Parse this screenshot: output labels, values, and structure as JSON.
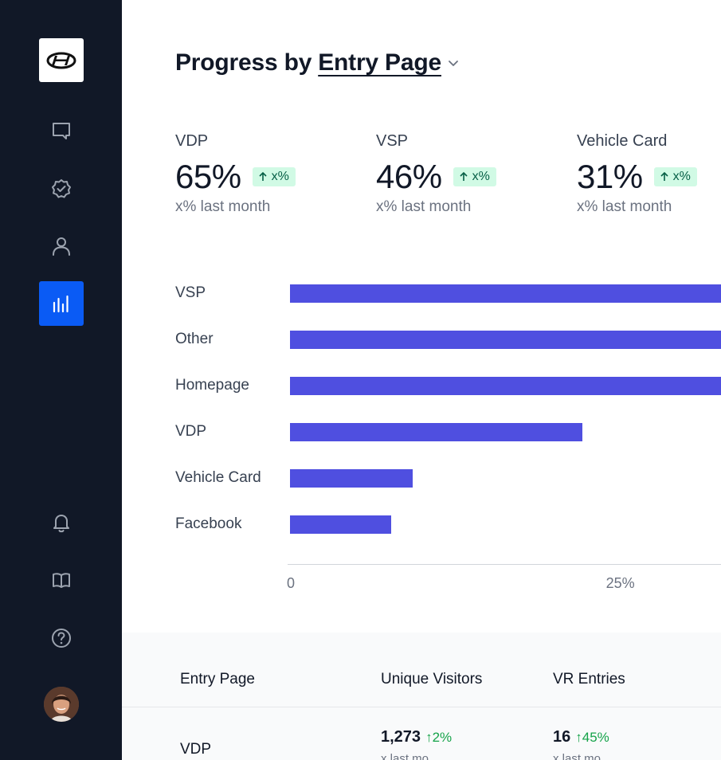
{
  "colors": {
    "sidebar_bg": "#111827",
    "active_nav": "#0a5bf5",
    "bar": "#4f4fe0",
    "badge_bg": "#d1fae5",
    "positive": "#16a34a"
  },
  "sidebar": {
    "logo_icon": "hyundai-logo",
    "items": [
      {
        "icon": "chat-icon",
        "active": false
      },
      {
        "icon": "check-badge-icon",
        "active": false
      },
      {
        "icon": "user-icon",
        "active": false
      },
      {
        "icon": "bar-chart-icon",
        "active": true
      }
    ],
    "bottom_items": [
      {
        "icon": "bell-icon"
      },
      {
        "icon": "book-icon"
      },
      {
        "icon": "help-icon"
      }
    ]
  },
  "header": {
    "title_prefix": "Progress by",
    "selector_label": "Entry Page"
  },
  "stats": [
    {
      "label": "VDP",
      "value": "65%",
      "badge": "x%",
      "sub": "x% last month"
    },
    {
      "label": "VSP",
      "value": "46%",
      "badge": "x%",
      "sub": "x% last month"
    },
    {
      "label": "Vehicle Card",
      "value": "31%",
      "badge": "x%",
      "sub": "x% last month"
    }
  ],
  "chart_data": {
    "type": "bar",
    "orientation": "horizontal",
    "categories": [
      "VSP",
      "Other",
      "Homepage",
      "VDP",
      "Vehicle Card",
      "Facebook"
    ],
    "values": [
      32,
      32,
      32,
      21.7,
      9.1,
      7.5
    ],
    "x_ticks": [
      "0",
      "25%"
    ],
    "xlim": [
      0,
      32
    ],
    "grid": false
  },
  "table": {
    "headers": [
      "Entry Page",
      "Unique Visitors",
      "VR Entries"
    ],
    "rows": [
      {
        "entry_page": "VDP",
        "unique_visitors": "1,273",
        "unique_visitors_delta": "2%",
        "unique_visitors_sub": "x last mo",
        "vr_entries": "16",
        "vr_entries_delta": "45%",
        "vr_entries_sub": "x last mo"
      }
    ]
  }
}
